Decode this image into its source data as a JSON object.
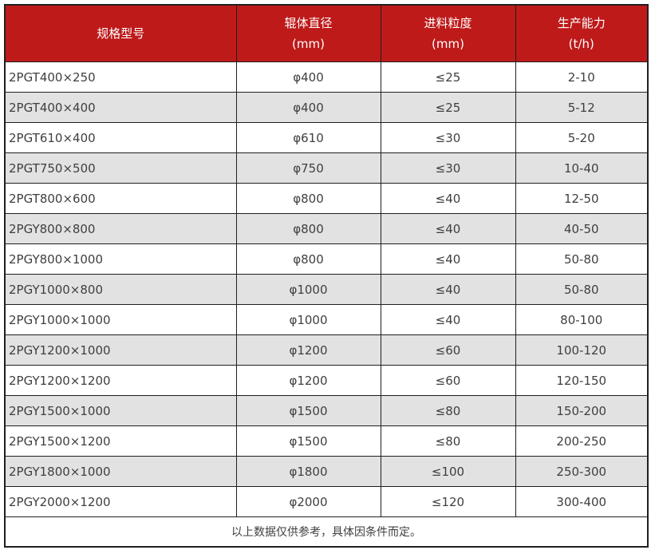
{
  "chart_data": {
    "type": "table",
    "columns": [
      {
        "label": "规格型号",
        "unit": ""
      },
      {
        "label": "辊体直径",
        "unit": "(mm)"
      },
      {
        "label": "进料粒度",
        "unit": "(mm)"
      },
      {
        "label": "生产能力",
        "unit": "(t/h)"
      }
    ],
    "rows": [
      [
        "2PGT400×250",
        "φ400",
        "≤25",
        "2-10"
      ],
      [
        "2PGT400×400",
        "φ400",
        "≤25",
        "5-12"
      ],
      [
        "2PGT610×400",
        "φ610",
        "≤30",
        "5-20"
      ],
      [
        "2PGT750×500",
        "φ750",
        "≤30",
        "10-40"
      ],
      [
        "2PGT800×600",
        "φ800",
        "≤40",
        "12-50"
      ],
      [
        "2PGY800×800",
        "φ800",
        "≤40",
        "40-50"
      ],
      [
        "2PGY800×1000",
        "φ800",
        "≤40",
        "50-80"
      ],
      [
        "2PGY1000×800",
        "φ1000",
        "≤40",
        "50-80"
      ],
      [
        "2PGY1000×1000",
        "φ1000",
        "≤40",
        "80-100"
      ],
      [
        "2PGY1200×1000",
        "φ1200",
        "≤60",
        "100-120"
      ],
      [
        "2PGY1200×1200",
        "φ1200",
        "≤60",
        "120-150"
      ],
      [
        "2PGY1500×1000",
        "φ1500",
        "≤80",
        "150-200"
      ],
      [
        "2PGY1500×1200",
        "φ1500",
        "≤80",
        "200-250"
      ],
      [
        "2PGY1800×1000",
        "φ1800",
        "≤100",
        "250-300"
      ],
      [
        "2PGY2000×1200",
        "φ2000",
        "≤120",
        "300-400"
      ]
    ],
    "footnote": "以上数据仅供参考，具体因条件而定。"
  },
  "colors": {
    "header_bg": "#be1a1a",
    "header_text": "#ffffff",
    "row_bg": "#ffffff",
    "row_alt_bg": "#e2e2e2",
    "border": "#1f1f1f",
    "body_text": "#3f3f3f"
  }
}
